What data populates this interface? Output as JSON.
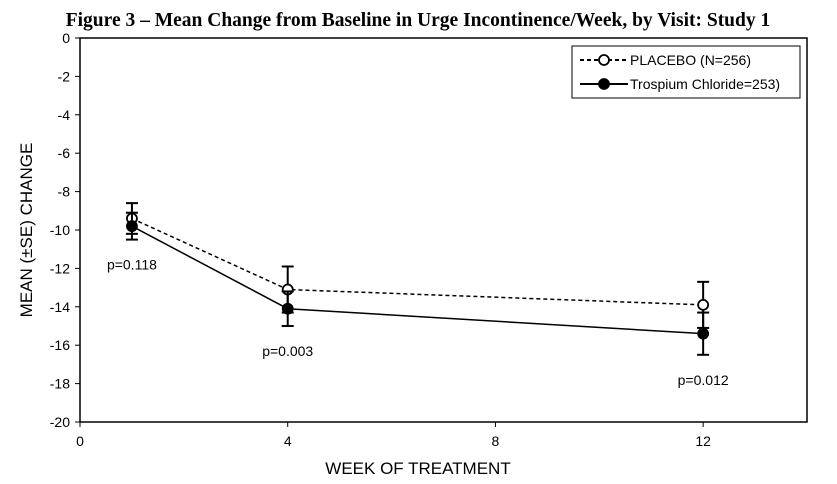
{
  "chart_data": {
    "type": "line",
    "title": "Figure 3 – Mean Change from Baseline in Urge Incontinence/Week, by Visit: Study 1",
    "xlabel": "WEEK OF TREATMENT",
    "ylabel": "MEAN (±SE) CHANGE",
    "xlim": [
      0,
      14
    ],
    "ylim": [
      -20,
      0
    ],
    "x_ticks": [
      0,
      4,
      8,
      12
    ],
    "y_ticks": [
      0,
      -2,
      -4,
      -6,
      -8,
      -10,
      -12,
      -14,
      -16,
      -18,
      -20
    ],
    "grid": false,
    "legend_position": "top-right",
    "series": [
      {
        "name": "PLACEBO (N=256)",
        "line_style": "dashed",
        "marker": "open-circle",
        "x": [
          1,
          4,
          12
        ],
        "values": [
          -9.4,
          -13.1,
          -13.9
        ],
        "se": [
          0.8,
          1.2,
          1.2
        ]
      },
      {
        "name": "Trospium Chloride=253)",
        "line_style": "solid",
        "marker": "filled-circle",
        "x": [
          1,
          4,
          12
        ],
        "values": [
          -9.8,
          -14.1,
          -15.4
        ],
        "se": [
          0.7,
          0.9,
          1.1
        ]
      }
    ],
    "annotations": [
      {
        "text": "p=0.118",
        "x": 1,
        "y": -11.8
      },
      {
        "text": "p=0.003",
        "x": 4,
        "y": -16.3
      },
      {
        "text": "p=0.012",
        "x": 12,
        "y": -17.8
      }
    ]
  }
}
